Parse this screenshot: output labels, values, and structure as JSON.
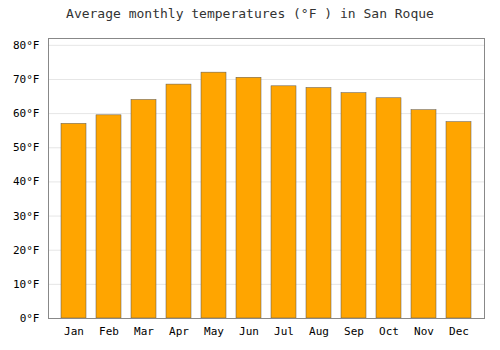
{
  "chart_data": {
    "type": "bar",
    "title": "Average monthly temperatures (°F ) in San Roque",
    "categories": [
      "Jan",
      "Feb",
      "Mar",
      "Apr",
      "May",
      "Jun",
      "Jul",
      "Aug",
      "Sep",
      "Oct",
      "Nov",
      "Dec"
    ],
    "values": [
      57,
      59.5,
      64,
      68.5,
      72,
      70.5,
      68,
      67.5,
      66,
      64.5,
      61,
      57.5
    ],
    "color": "#FFA500",
    "ylim": [
      0,
      82
    ],
    "yticks": [
      {
        "value": 0,
        "label": "0°F"
      },
      {
        "value": 10,
        "label": "10°F"
      },
      {
        "value": 20,
        "label": "20°F"
      },
      {
        "value": 30,
        "label": "30°F"
      },
      {
        "value": 40,
        "label": "40°F"
      },
      {
        "value": 50,
        "label": "50°F"
      },
      {
        "value": 60,
        "label": "60°F"
      },
      {
        "value": 70,
        "label": "70°F"
      },
      {
        "value": 80,
        "label": "80°F"
      }
    ],
    "grid": true
  }
}
